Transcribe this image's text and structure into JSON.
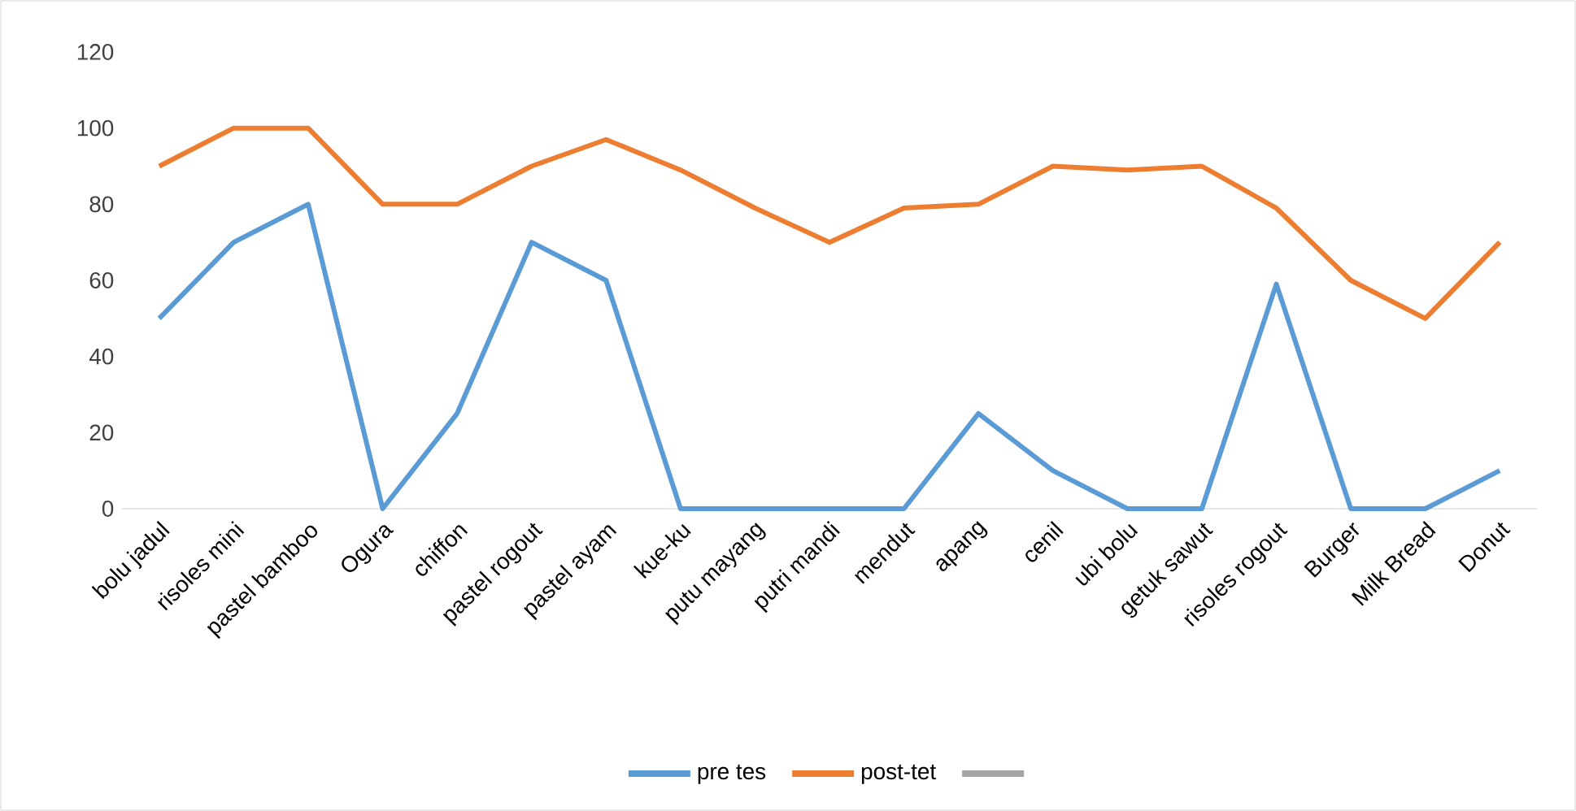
{
  "chart_data": {
    "type": "line",
    "categories": [
      "bolu jadul",
      "risoles mini",
      "pastel  bamboo",
      "Ogura",
      "chiffon",
      "pastel rogout",
      "pastel ayam",
      "kue-ku",
      "putu mayang",
      "putri mandi",
      "mendut",
      "apang",
      "cenil",
      "ubi bolu",
      "getuk sawut",
      "risoles rogout",
      "Burger",
      "Milk Bread",
      "Donut"
    ],
    "series": [
      {
        "name": "pre tes",
        "color": "#5b9bd5",
        "values": [
          50,
          70,
          80,
          0,
          25,
          70,
          60,
          0,
          0,
          0,
          0,
          25,
          10,
          0,
          0,
          59,
          0,
          0,
          10
        ]
      },
      {
        "name": "post-tet",
        "color": "#ed7d31",
        "values": [
          90,
          100,
          100,
          80,
          80,
          90,
          97,
          89,
          79,
          70,
          79,
          80,
          90,
          89,
          90,
          79,
          60,
          50,
          70
        ]
      },
      {
        "color": "#a5a5a5",
        "values": [
          null,
          null,
          null,
          null,
          null,
          null,
          null,
          null,
          null,
          null,
          null,
          null,
          null,
          null,
          null,
          null,
          null,
          null,
          null
        ]
      }
    ],
    "ylim": [
      0,
      120
    ],
    "yticks": [
      0,
      20,
      40,
      60,
      80,
      100,
      120
    ],
    "legend": "bottom",
    "grid": false,
    "marker": "none",
    "line_style": "solid"
  }
}
